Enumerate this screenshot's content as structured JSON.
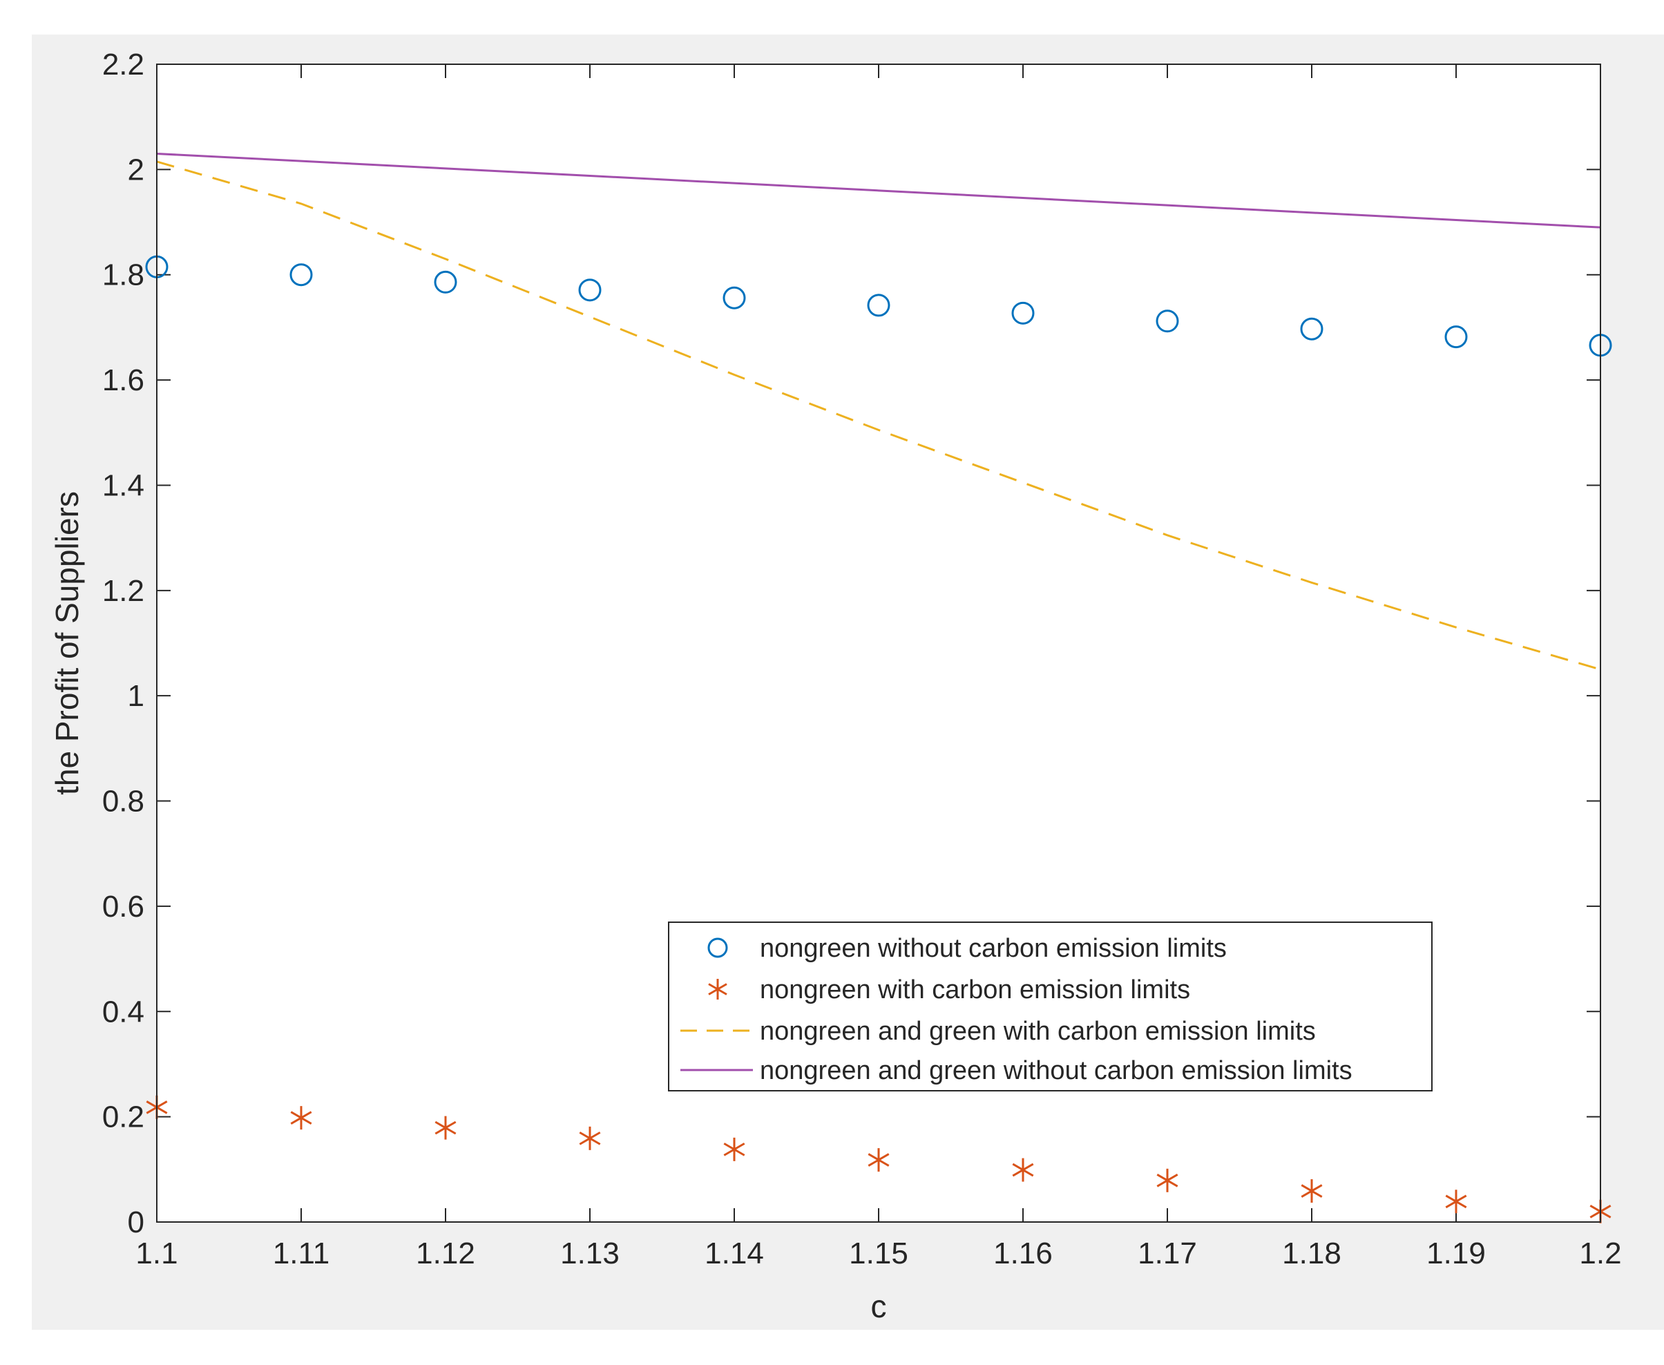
{
  "chart_data": {
    "type": "line",
    "title": "",
    "xlabel": "c",
    "ylabel": "the Profit of Suppliers",
    "xlim": [
      1.1,
      1.2
    ],
    "ylim": [
      0,
      2.2
    ],
    "x_ticks": [
      "1.1",
      "1.11",
      "1.12",
      "1.13",
      "1.14",
      "1.15",
      "1.16",
      "1.17",
      "1.18",
      "1.19",
      "1.2"
    ],
    "y_ticks": [
      "0",
      "0.2",
      "0.4",
      "0.6",
      "0.8",
      "1",
      "1.2",
      "1.4",
      "1.6",
      "1.8",
      "2",
      "2.2"
    ],
    "grid": false,
    "legend_position": "bottom-right",
    "background_color": "#f0f0f0",
    "axes_color": "#ffffff",
    "x": [
      1.1,
      1.11,
      1.12,
      1.13,
      1.14,
      1.15,
      1.16,
      1.17,
      1.18,
      1.19,
      1.2
    ],
    "series": [
      {
        "name": "nongreen without carbon emission limits",
        "style": "circle-markers",
        "color": "#0072bd",
        "values": [
          1.815,
          1.8,
          1.786,
          1.771,
          1.756,
          1.742,
          1.727,
          1.712,
          1.697,
          1.682,
          1.666
        ]
      },
      {
        "name": "nongreen with carbon emission limits",
        "style": "asterisk-markers",
        "color": "#d95319",
        "values": [
          0.218,
          0.198,
          0.179,
          0.159,
          0.138,
          0.118,
          0.099,
          0.079,
          0.059,
          0.039,
          0.02
        ]
      },
      {
        "name": "nongreen and green with carbon emission limits",
        "style": "dashed-line",
        "color": "#edb120",
        "values": [
          2.015,
          1.935,
          1.83,
          1.72,
          1.61,
          1.505,
          1.405,
          1.305,
          1.215,
          1.13,
          1.05
        ]
      },
      {
        "name": "nongreen and green without carbon emission limits",
        "style": "solid-line",
        "color": "#a24fac",
        "values": [
          2.03,
          2.016,
          2.002,
          1.988,
          1.974,
          1.96,
          1.946,
          1.932,
          1.918,
          1.904,
          1.89
        ]
      }
    ]
  }
}
